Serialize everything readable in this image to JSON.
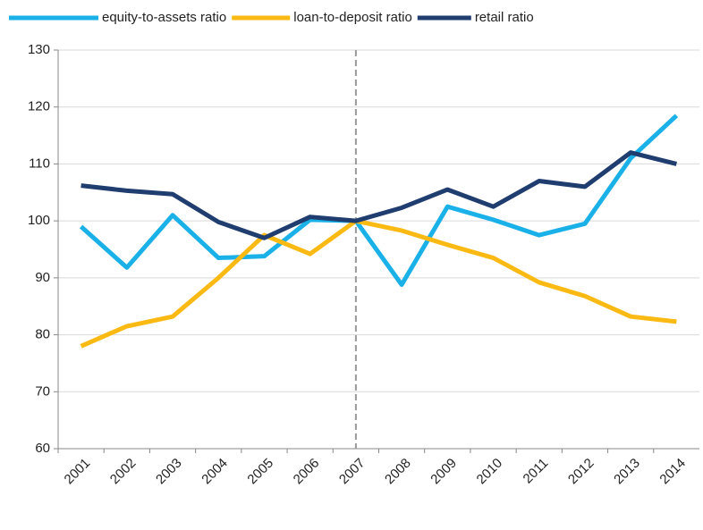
{
  "chart_data": {
    "type": "line",
    "categories": [
      "2001",
      "2002",
      "2003",
      "2004",
      "2005",
      "2006",
      "2007",
      "2008",
      "2009",
      "2010",
      "2011",
      "2012",
      "2013",
      "2014"
    ],
    "series": [
      {
        "name": "equity-to-assets ratio",
        "color": "#1ab0e8",
        "values": [
          99,
          91.8,
          101,
          93.5,
          93.8,
          100.2,
          100,
          88.8,
          102.5,
          100.2,
          97.5,
          99.5,
          111,
          118.5
        ]
      },
      {
        "name": "loan-to-deposit ratio",
        "color": "#fbb913",
        "values": [
          78,
          81.5,
          83.2,
          90,
          97.5,
          94.2,
          100,
          98.3,
          95.8,
          93.5,
          89.2,
          86.8,
          83.2,
          82.3
        ]
      },
      {
        "name": "retail ratio",
        "color": "#1f3d6e",
        "values": [
          106.2,
          105.3,
          104.7,
          99.8,
          97,
          100.7,
          100,
          102.3,
          105.5,
          102.5,
          107,
          106,
          112,
          110
        ]
      }
    ],
    "ylim": [
      60,
      130
    ],
    "yticks": [
      60,
      70,
      80,
      90,
      100,
      110,
      120,
      130
    ],
    "grid": true,
    "vline": "2007",
    "legend": "top"
  }
}
